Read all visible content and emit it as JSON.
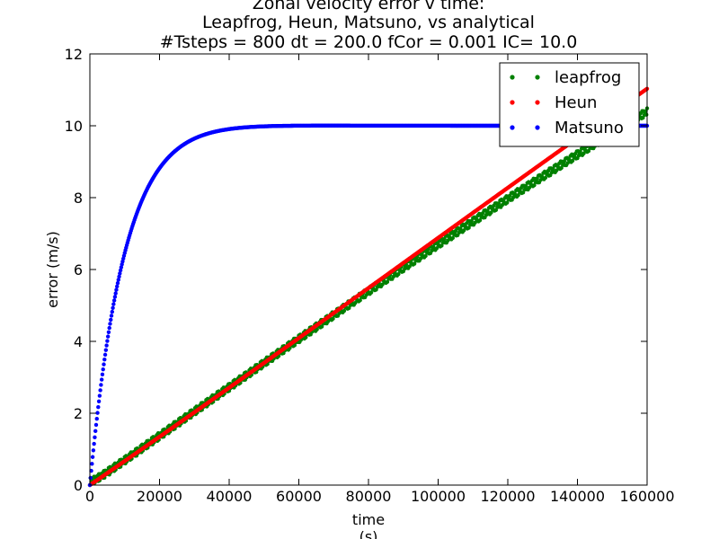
{
  "chart_data": {
    "type": "scatter",
    "title_lines": [
      "Zonal velocity error v time:",
      "Leapfrog, Heun, Matsuno, vs analytical",
      "#Tsteps = 800 dt = 200.0 fCor = 0.001 IC= 10.0"
    ],
    "xlabel_lines": [
      "time",
      "(s)"
    ],
    "ylabel": "error (m/s)",
    "xlim": [
      0,
      160000
    ],
    "ylim": [
      0,
      12
    ],
    "xticks": [
      0,
      20000,
      40000,
      60000,
      80000,
      100000,
      120000,
      140000,
      160000
    ],
    "yticks": [
      0,
      2,
      4,
      6,
      8,
      10,
      12
    ],
    "grid": false,
    "legend_position": "top-right",
    "model": {
      "tsteps": 800,
      "dt": 200.0,
      "fCor": 0.001,
      "IC": 10.0
    },
    "series": [
      {
        "name": "leapfrog",
        "color": "#008000"
      },
      {
        "name": "Heun",
        "color": "#ff0000"
      },
      {
        "name": "Matsuno",
        "color": "#0000ff"
      }
    ]
  }
}
